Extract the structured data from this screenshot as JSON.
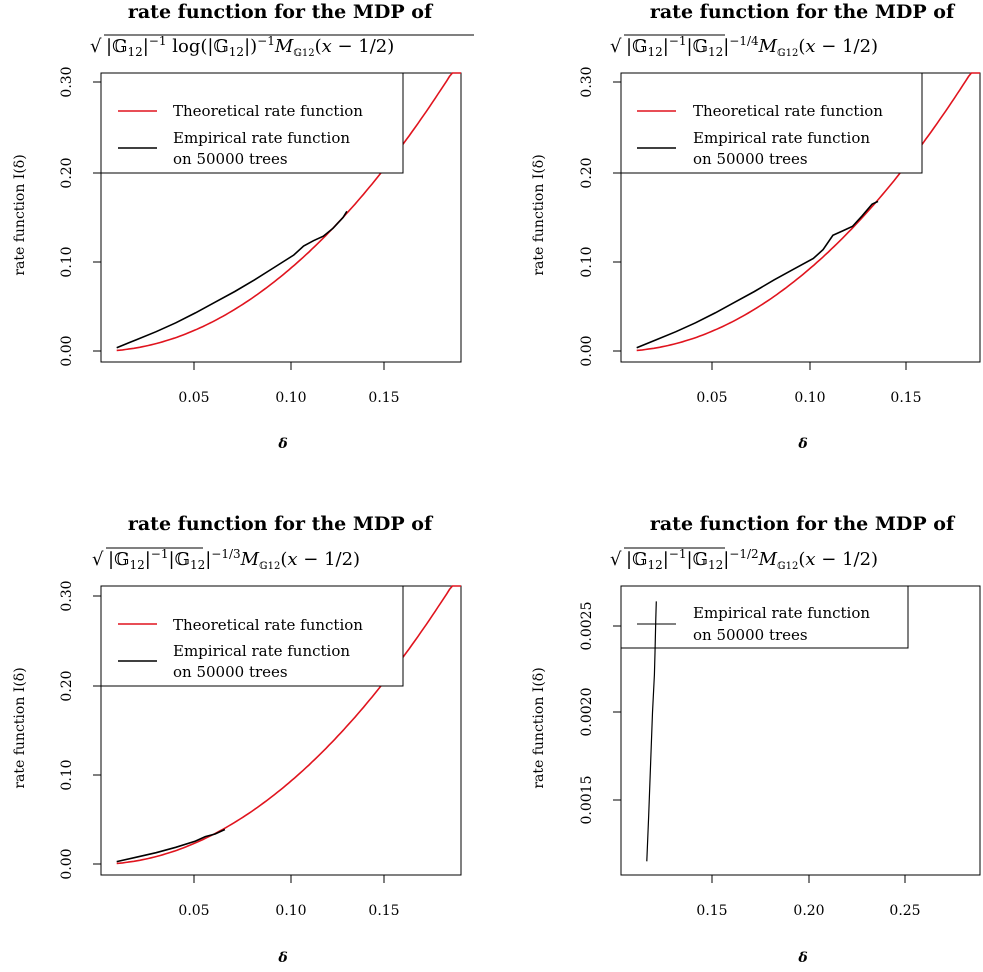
{
  "colors": {
    "theoretical": "#e0141e",
    "empirical": "#000000",
    "background": "#ffffff",
    "axis": "#000000"
  },
  "chart_data": [
    {
      "type": "line",
      "title": "rate function for the MDP of",
      "subtitle": "√(|𝔾₁₂|⁻¹ log(|𝔾₁₂|)⁻¹ M𝔾₁₂(x − 1/2))",
      "xlabel": "δ",
      "ylabel": "rate function I(δ)",
      "xlim": [
        0.002,
        0.185
      ],
      "ylim": [
        -0.012,
        0.312
      ],
      "xticks": [
        0.05,
        0.1,
        0.15
      ],
      "xtick_labels": [
        "0.05",
        "0.10",
        "0.15"
      ],
      "yticks": [
        0.0,
        0.1,
        0.2,
        0.3
      ],
      "ytick_labels": [
        "0.00",
        "0.10",
        "0.20",
        "0.30"
      ],
      "legend": {
        "placement": "top-left",
        "entries": [
          {
            "label": "Theoretical rate function",
            "color": "#e0141e"
          },
          {
            "label": "Empirical rate function",
            "label2": "on 50000 trees",
            "color": "#000000"
          }
        ]
      },
      "series": [
        {
          "name": "Theoretical rate function",
          "color": "#e0141e",
          "kind": "quadratic",
          "coef": 9.6,
          "x_range": [
            0.01,
            0.185
          ]
        },
        {
          "name": "Empirical rate function",
          "color": "#000000",
          "kind": "points",
          "x": [
            0.01,
            0.02,
            0.03,
            0.04,
            0.05,
            0.06,
            0.07,
            0.08,
            0.09,
            0.1,
            0.105,
            0.11,
            0.115,
            0.12,
            0.125,
            0.127
          ],
          "y": [
            0.004,
            0.013,
            0.022,
            0.032,
            0.043,
            0.055,
            0.067,
            0.08,
            0.094,
            0.108,
            0.118,
            0.124,
            0.129,
            0.138,
            0.15,
            0.157
          ]
        }
      ]
    },
    {
      "type": "line",
      "title": "rate function for the MDP of",
      "subtitle": "√(|𝔾₁₂|⁻¹ |𝔾₁₂|⁻¹ᐟ⁴ M𝔾₁₂(x − 1/2))",
      "xlabel": "δ",
      "ylabel": "rate function I(δ)",
      "xlim": [
        0.002,
        0.185
      ],
      "ylim": [
        -0.012,
        0.312
      ],
      "xticks": [
        0.05,
        0.1,
        0.15
      ],
      "xtick_labels": [
        "0.05",
        "0.10",
        "0.15"
      ],
      "yticks": [
        0.0,
        0.1,
        0.2,
        0.3
      ],
      "ytick_labels": [
        "0.00",
        "0.10",
        "0.20",
        "0.30"
      ],
      "legend": {
        "placement": "top-left",
        "entries": [
          {
            "label": "Theoretical rate function",
            "color": "#e0141e"
          },
          {
            "label": "Empirical rate function",
            "label2": "on 50000 trees",
            "color": "#000000"
          }
        ]
      },
      "series": [
        {
          "name": "Theoretical rate function",
          "color": "#e0141e",
          "kind": "quadratic",
          "coef": 9.6,
          "x_range": [
            0.01,
            0.185
          ]
        },
        {
          "name": "Empirical rate function",
          "color": "#000000",
          "kind": "points",
          "x": [
            0.01,
            0.02,
            0.03,
            0.04,
            0.05,
            0.06,
            0.07,
            0.08,
            0.09,
            0.1,
            0.105,
            0.11,
            0.115,
            0.12,
            0.125,
            0.13,
            0.133
          ],
          "y": [
            0.004,
            0.013,
            0.022,
            0.032,
            0.043,
            0.055,
            0.067,
            0.08,
            0.092,
            0.104,
            0.114,
            0.13,
            0.135,
            0.14,
            0.152,
            0.165,
            0.168
          ]
        }
      ]
    },
    {
      "type": "line",
      "title": "rate function for the MDP of",
      "subtitle": "√(|𝔾₁₂|⁻¹ |𝔾₁₂|⁻¹ᐟ³ M𝔾₁₂(x − 1/2))",
      "xlabel": "δ",
      "ylabel": "rate function I(δ)",
      "xlim": [
        0.002,
        0.185
      ],
      "ylim": [
        -0.012,
        0.312
      ],
      "xticks": [
        0.05,
        0.1,
        0.15
      ],
      "xtick_labels": [
        "0.05",
        "0.10",
        "0.15"
      ],
      "yticks": [
        0.0,
        0.1,
        0.2,
        0.3
      ],
      "ytick_labels": [
        "0.00",
        "0.10",
        "0.20",
        "0.30"
      ],
      "legend": {
        "placement": "top-left",
        "entries": [
          {
            "label": "Theoretical rate function",
            "color": "#e0141e"
          },
          {
            "label": "Empirical rate function",
            "label2": "on 50000 trees",
            "color": "#000000"
          }
        ]
      },
      "series": [
        {
          "name": "Theoretical rate function",
          "color": "#e0141e",
          "kind": "quadratic",
          "coef": 9.6,
          "x_range": [
            0.01,
            0.185
          ]
        },
        {
          "name": "Empirical rate function",
          "color": "#000000",
          "kind": "points",
          "x": [
            0.01,
            0.02,
            0.03,
            0.04,
            0.05,
            0.055,
            0.06,
            0.065
          ],
          "y": [
            0.003,
            0.008,
            0.013,
            0.019,
            0.026,
            0.031,
            0.034,
            0.039
          ]
        }
      ]
    },
    {
      "type": "line",
      "title": "rate function for the MDP of",
      "subtitle": "√(|𝔾₁₂|⁻¹ |𝔾₁₂|⁻¹ᐟ² M𝔾₁₂(x − 1/2))",
      "xlabel": "δ",
      "ylabel": "rate function I(δ)",
      "xlim": [
        0.097,
        0.285
      ],
      "ylim": [
        0.00105,
        0.00274
      ],
      "xticks": [
        0.15,
        0.2,
        0.25
      ],
      "xtick_labels": [
        "0.15",
        "0.20",
        "0.25"
      ],
      "yticks": [
        0.0015,
        0.002,
        0.0025
      ],
      "ytick_labels": [
        "0.0015",
        "0.0020",
        "0.0025"
      ],
      "legend": {
        "placement": "top-left",
        "entries": [
          {
            "label": "Empirical rate function",
            "label2": "on 50000 trees",
            "color": "#000000"
          }
        ]
      },
      "series": [
        {
          "name": "Empirical rate function",
          "color": "#000000",
          "kind": "points",
          "x": [
            0.1105,
            0.1115,
            0.1125,
            0.1135,
            0.1145,
            0.1148,
            0.1152,
            0.1155
          ],
          "y": [
            0.00113,
            0.0014,
            0.0017,
            0.002,
            0.00222,
            0.00235,
            0.00255,
            0.00265
          ]
        }
      ]
    }
  ]
}
